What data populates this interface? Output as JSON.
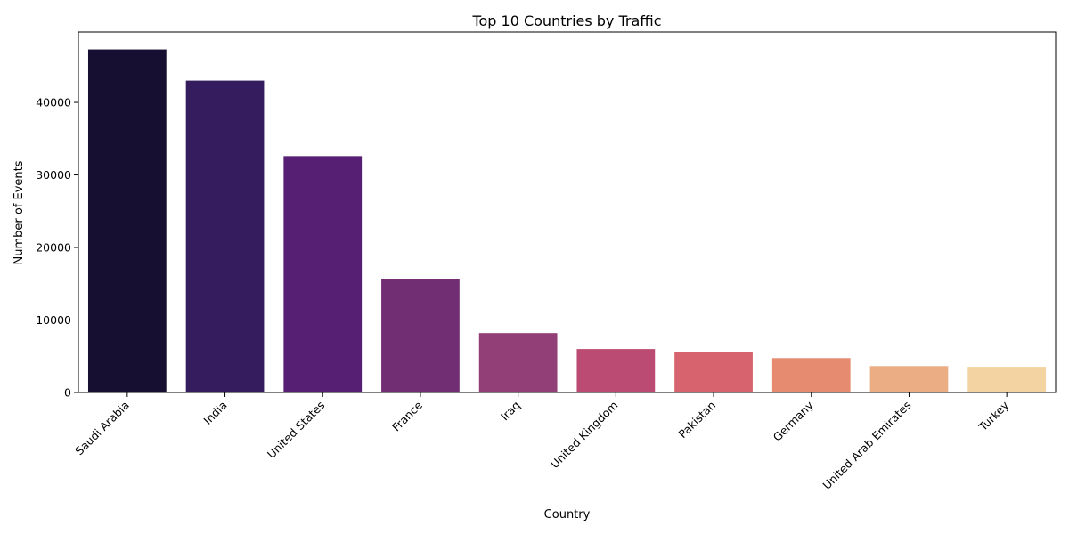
{
  "chart_data": {
    "type": "bar",
    "title": "Top 10 Countries by Traffic",
    "xlabel": "Country",
    "ylabel": "Number of Events",
    "categories": [
      "Saudi Arabia",
      "India",
      "United States",
      "France",
      "Iraq",
      "United Kingdom",
      "Pakistan",
      "Germany",
      "United Arab Emirates",
      "Turkey"
    ],
    "values": [
      47300,
      43000,
      32600,
      15600,
      8200,
      6000,
      5600,
      4750,
      3650,
      3550
    ],
    "colors": [
      "#170f31",
      "#341c5e",
      "#561f73",
      "#722e73",
      "#923f77",
      "#bb4b72",
      "#d6636d",
      "#e68a70",
      "#ebae84",
      "#f3d3a2"
    ],
    "ylim": [
      0,
      49700
    ],
    "yticks": [
      0,
      10000,
      20000,
      30000,
      40000
    ],
    "grid": false,
    "legend": "none"
  }
}
